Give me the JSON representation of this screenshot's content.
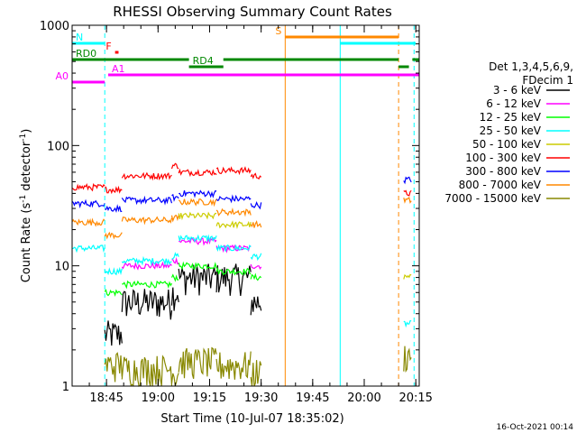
{
  "chart_data": {
    "type": "line",
    "title": "RHESSI Observing Summary Count Rates",
    "xlabel": "Start Time (10-Jul-07 18:35:02)",
    "ylabel_prefix": "Count Rate (s",
    "ylabel_sup": "-1",
    "ylabel_suffix": " detector",
    "ylabel_end": ")",
    "y_scale": "log",
    "xlim_minutes": [
      0,
      101
    ],
    "ylim": [
      1,
      1000
    ],
    "x_ticks": [
      {
        "m": 10,
        "label": "18:45"
      },
      {
        "m": 25,
        "label": "19:00"
      },
      {
        "m": 40,
        "label": "19:15"
      },
      {
        "m": 55,
        "label": "19:30"
      },
      {
        "m": 70,
        "label": "19:45"
      },
      {
        "m": 85,
        "label": "20:00"
      },
      {
        "m": 100,
        "label": "20:15"
      }
    ],
    "y_ticks": [
      {
        "v": 1,
        "label": "1"
      },
      {
        "v": 10,
        "label": "10"
      },
      {
        "v": 100,
        "label": "100"
      },
      {
        "v": 1000,
        "label": "1000"
      }
    ],
    "legend_header": [
      "Det 1,3,4,5,6,9,",
      "FDecim 1"
    ],
    "legend_placement": "right",
    "series": [
      {
        "name": "3 - 6 keV",
        "color": "#000000"
      },
      {
        "name": "6 - 12 keV",
        "color": "#ff00ff"
      },
      {
        "name": "12 - 25 keV",
        "color": "#00ff00"
      },
      {
        "name": "25 - 50 keV",
        "color": "#00ffff"
      },
      {
        "name": "50 - 100 keV",
        "color": "#cccc00"
      },
      {
        "name": "100 - 300 keV",
        "color": "#ff0000"
      },
      {
        "name": "300 - 800 keV",
        "color": "#0000ff"
      },
      {
        "name": "800 - 7000 keV",
        "color": "#ff8800"
      },
      {
        "name": "7000 - 15000 keV",
        "color": "#888800"
      }
    ],
    "data_segments": [
      {
        "start": 0,
        "end": 9.5,
        "levels": [
          0,
          0,
          0,
          14,
          0,
          45,
          33,
          23,
          0
        ]
      },
      {
        "start": 9.5,
        "end": 14.5,
        "levels": [
          2.7,
          0,
          6,
          9,
          0,
          43,
          30,
          18,
          1.5
        ]
      },
      {
        "start": 14.5,
        "end": 29,
        "levels": [
          5,
          10,
          7,
          11,
          0,
          56,
          35,
          24,
          1.4
        ]
      },
      {
        "start": 29,
        "end": 31,
        "levels": [
          6,
          11,
          8,
          12,
          0,
          68,
          37,
          25,
          1.3
        ]
      },
      {
        "start": 31,
        "end": 42,
        "levels": [
          8,
          16,
          10,
          17,
          26,
          60,
          40,
          34,
          1.6
        ]
      },
      {
        "start": 42,
        "end": 52,
        "levels": [
          8,
          14,
          9,
          14,
          22,
          62,
          36,
          28,
          1.5
        ]
      },
      {
        "start": 52,
        "end": 55,
        "levels": [
          5,
          10,
          8,
          12,
          0,
          56,
          32,
          22,
          1.3
        ]
      },
      {
        "start": 96.5,
        "end": 98.7,
        "levels": [
          0,
          0,
          0,
          3.3,
          8,
          40,
          52,
          35,
          1.8
        ]
      }
    ],
    "flags": [
      {
        "label": "N",
        "color": "#00ffff",
        "segments": [
          [
            0,
            9.5
          ],
          [
            78,
            100
          ]
        ]
      },
      {
        "label": "F",
        "color": "#ff0000",
        "segments": [
          [
            12.5,
            13.5
          ]
        ]
      },
      {
        "label": "S",
        "color": "#ff8800",
        "segments": [
          [
            62,
            95
          ]
        ]
      },
      {
        "label": "RD0",
        "color": "#008800",
        "segments": [
          [
            0,
            34
          ],
          [
            44,
            95
          ],
          [
            99,
            101
          ]
        ]
      },
      {
        "label": "RD4",
        "color": "#008800",
        "segments": [
          [
            34,
            44
          ],
          [
            95,
            98
          ]
        ]
      },
      {
        "label": "A0",
        "color": "#ff00ff",
        "segments": [
          [
            0,
            9.5
          ]
        ]
      },
      {
        "label": "A1",
        "color": "#ff00ff",
        "segments": [
          [
            10.5,
            101
          ]
        ]
      }
    ],
    "vlines": [
      {
        "m": 9.5,
        "color": "#00ffff",
        "dash": true
      },
      {
        "m": 62,
        "color": "#ff8800",
        "dash": false
      },
      {
        "m": 78,
        "color": "#00ffff",
        "dash": false
      },
      {
        "m": 95,
        "color": "#ff8800",
        "dash": true
      },
      {
        "m": 99.5,
        "color": "#00ffff",
        "dash": true
      }
    ]
  },
  "footer": "16-Oct-2021 00:14"
}
